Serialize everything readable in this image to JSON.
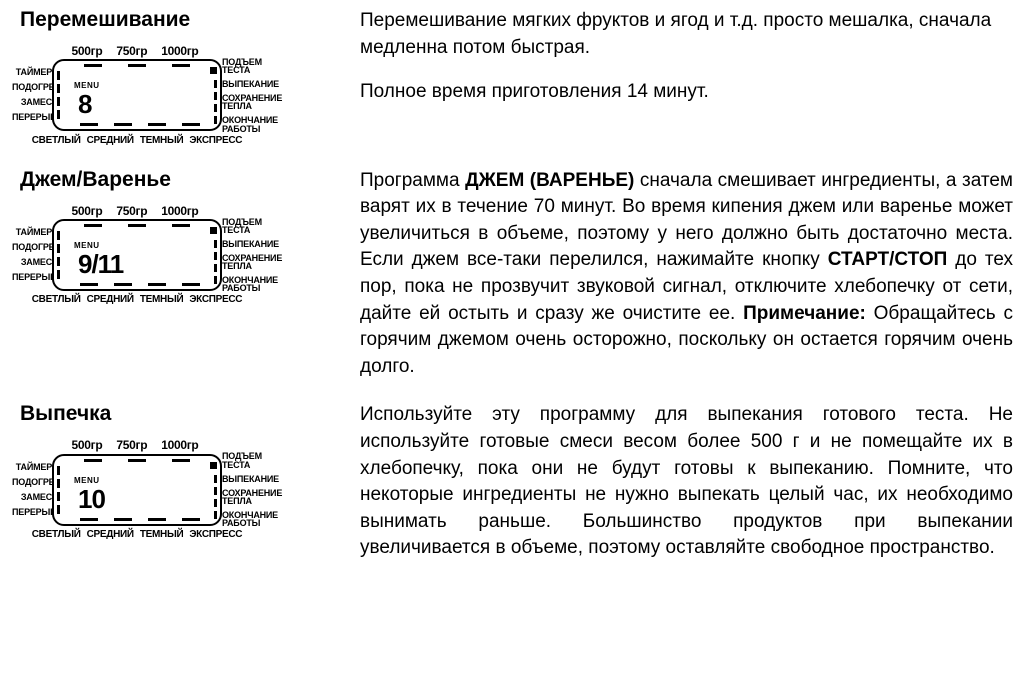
{
  "display": {
    "top_labels": [
      "500гр",
      "750гр",
      "1000гр"
    ],
    "left_labels": [
      "ТАЙМЕР",
      "ПОДОГРЕВ",
      "ЗАМЕС",
      "ПЕРЕРЫВ"
    ],
    "right_labels": [
      {
        "l1": "ПОДЪЕМ",
        "l2": "ТЕСТА"
      },
      {
        "l1": "ВЫПЕКАНИЕ",
        "l2": ""
      },
      {
        "l1": "СОХРАНЕНИЕ",
        "l2": "ТЕПЛА"
      },
      {
        "l1": "ОКОНЧАНИЕ",
        "l2": "РАБОТЫ"
      }
    ],
    "bottom_labels": [
      "СВЕТЛЫЙ",
      "СРЕДНИЙ",
      "ТЕМНЫЙ",
      "ЭКСПРЕСС"
    ],
    "menu_label": "MENU"
  },
  "sections": [
    {
      "title": "Перемешивание",
      "menu_number": "8",
      "desc_p1": "Перемешивание мягких фруктов и ягод и т.д. просто мешалка, сначала медленна потом быстрая.",
      "desc_p2": "Полное время приготовления 14 минут."
    },
    {
      "title": "Джем/Варенье",
      "menu_number": "9/11",
      "desc_pre1": "Программа ",
      "desc_bold1": "ДЖЕМ (ВАРЕНЬЕ)",
      "desc_mid1": " сначала смешивает ингреди­енты, а затем варят их в течение 70 минут. Во время кипе­ния джем или варенье может увеличиться в объеме, поэтому у него должно быть достаточно места. Если джем все-таки перелился, нажимайте кнопку ",
      "desc_bold2": "СТАРТ/СТОП",
      "desc_mid2": "  до тех пор, пока не прозвучит звуковой сигнал, отключите хлебопечку от сети, дайте ей остыть и сразу же очистите ее. ",
      "desc_bold3": "Примечание:",
      "desc_tail": " Обра­щайтесь с горячим джемом очень осторожно, поскольку он ос­тается горячим очень долго."
    },
    {
      "title": "Выпечка",
      "menu_number": "10",
      "desc": "Используйте эту программу для выпекания готового теста. Не используйте готовые смеси весом более 500 г и не помещайте их в хлебопечку, пока они не будут готовы к выпеканию. Помни­те, что некоторые ингредиенты не нужно выпекать целый час, их необходимо вынимать раньше. Большинство продуктов при выпекании увеличивается в объеме, поэтому оставляйте сво­бодное пространство."
    }
  ]
}
